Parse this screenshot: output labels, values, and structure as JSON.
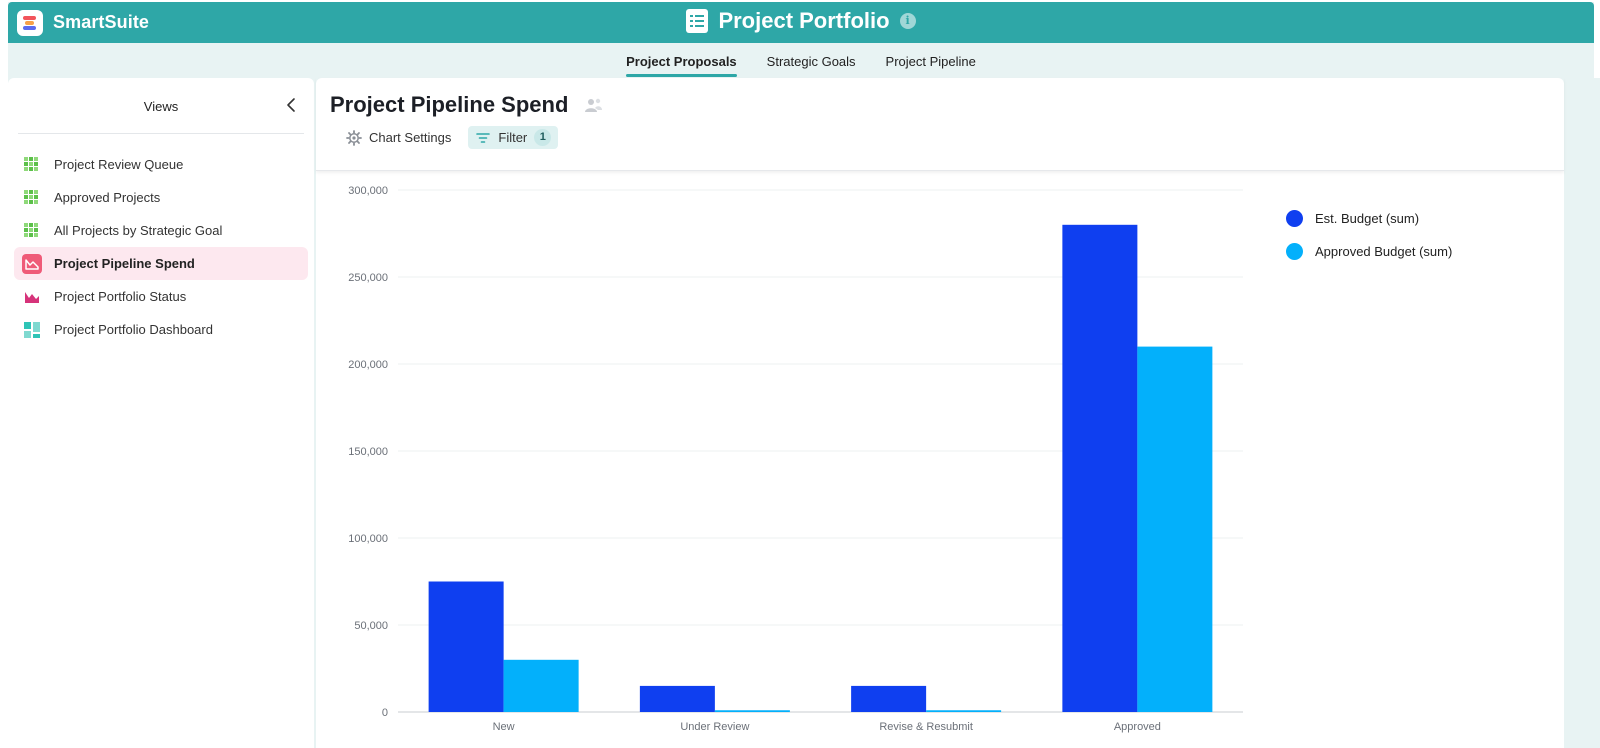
{
  "brand": {
    "name": "SmartSuite"
  },
  "app": {
    "title": "Project Portfolio"
  },
  "tabs": [
    {
      "label": "Project Proposals",
      "active": true
    },
    {
      "label": "Strategic Goals",
      "active": false
    },
    {
      "label": "Project Pipeline",
      "active": false
    }
  ],
  "sidebar": {
    "title": "Views",
    "items": [
      {
        "label": "Project Review Queue",
        "icon": "grid-view-icon",
        "active": false
      },
      {
        "label": "Approved Projects",
        "icon": "grid-view-icon",
        "active": false
      },
      {
        "label": "All Projects by Strategic Goal",
        "icon": "grid-view-icon",
        "active": false
      },
      {
        "label": "Project Pipeline Spend",
        "icon": "chart-view-icon",
        "active": true
      },
      {
        "label": "Project Portfolio Status",
        "icon": "chart-view-icon",
        "active": false
      },
      {
        "label": "Project Portfolio Dashboard",
        "icon": "dashboard-view-icon",
        "active": false
      }
    ]
  },
  "view": {
    "title": "Project Pipeline Spend",
    "toolbar": {
      "chart_settings_label": "Chart Settings",
      "filter_label": "Filter",
      "filter_count": "1"
    }
  },
  "colors": {
    "brand_teal": "#2ea7a7",
    "est_budget": "#0f3ff0",
    "approved_budget": "#03b0fb",
    "active_view_bg": "#fde8ef"
  },
  "chart_data": {
    "type": "bar",
    "categories": [
      "New",
      "Under Review",
      "Revise & Resubmit",
      "Approved"
    ],
    "series": [
      {
        "name": "Est. Budget (sum)",
        "values": [
          75000,
          15000,
          15000,
          280000
        ],
        "color": "#0f3ff0"
      },
      {
        "name": "Approved Budget (sum)",
        "values": [
          30000,
          1000,
          1000,
          210000
        ],
        "color": "#03b0fb"
      }
    ],
    "yticks": [
      "0",
      "50,000",
      "100,000",
      "150,000",
      "200,000",
      "250,000",
      "300,000"
    ],
    "ylim": [
      0,
      300000
    ],
    "grid": true,
    "legend_position": "right"
  }
}
